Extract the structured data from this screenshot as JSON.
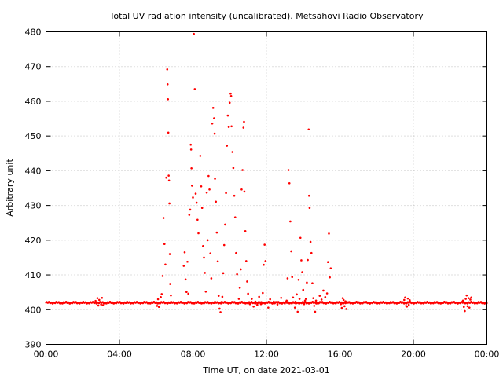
{
  "chart_data": {
    "type": "scatter",
    "title": "Total UV radiation intensity (uncalibrated). Metsähovi Radio Observatory",
    "xlabel": "Time UT, on date 2021-03-01",
    "ylabel": "Arbitrary unit",
    "x_unit": "hours UT",
    "xlim": [
      0,
      24
    ],
    "ylim": [
      390,
      480
    ],
    "x_ticks": [
      0,
      4,
      8,
      12,
      16,
      20,
      24
    ],
    "x_tick_labels": [
      "00:00",
      "04:00",
      "08:00",
      "12:00",
      "16:00",
      "20:00",
      "00:00"
    ],
    "y_ticks": [
      390,
      400,
      410,
      420,
      430,
      440,
      450,
      460,
      470,
      480
    ],
    "grid": true,
    "marker_color": "#ff0000",
    "series": [
      {
        "baseline": 402,
        "points": [
          [
            2.7,
            402.5
          ],
          [
            2.8,
            403.3
          ],
          [
            2.85,
            401.2
          ],
          [
            2.9,
            402.8
          ],
          [
            3.0,
            401.5
          ],
          [
            3.05,
            403.4
          ],
          [
            3.1,
            401.3
          ],
          [
            6.05,
            401.1
          ],
          [
            6.1,
            403.0
          ],
          [
            6.15,
            400.8
          ],
          [
            6.2,
            401.8
          ],
          [
            6.25,
            403.6
          ],
          [
            6.3,
            404.5
          ],
          [
            6.35,
            409.7
          ],
          [
            6.4,
            426.4
          ],
          [
            6.45,
            418.9
          ],
          [
            6.5,
            413.0
          ],
          [
            6.55,
            438.0
          ],
          [
            6.6,
            469.2
          ],
          [
            6.62,
            464.9
          ],
          [
            6.64,
            460.6
          ],
          [
            6.66,
            451.0
          ],
          [
            6.68,
            438.6
          ],
          [
            6.7,
            437.2
          ],
          [
            6.72,
            430.6
          ],
          [
            6.74,
            416.0
          ],
          [
            6.76,
            407.4
          ],
          [
            6.8,
            404.1
          ],
          [
            7.5,
            412.6
          ],
          [
            7.55,
            416.5
          ],
          [
            7.6,
            408.7
          ],
          [
            7.65,
            405.1
          ],
          [
            7.7,
            413.8
          ],
          [
            7.75,
            404.6
          ],
          [
            7.8,
            427.3
          ],
          [
            7.85,
            428.8
          ],
          [
            7.88,
            447.5
          ],
          [
            7.9,
            446.1
          ],
          [
            7.92,
            440.7
          ],
          [
            7.95,
            435.7
          ],
          [
            8.0,
            432.3
          ],
          [
            8.05,
            479.4
          ],
          [
            8.1,
            463.5
          ],
          [
            8.15,
            433.4
          ],
          [
            8.2,
            430.8
          ],
          [
            8.25,
            425.9
          ],
          [
            8.3,
            422.0
          ],
          [
            8.4,
            444.3
          ],
          [
            8.45,
            435.5
          ],
          [
            8.5,
            429.3
          ],
          [
            8.55,
            418.3
          ],
          [
            8.6,
            415.0
          ],
          [
            8.65,
            410.6
          ],
          [
            8.7,
            405.2
          ],
          [
            8.75,
            433.7
          ],
          [
            8.8,
            420.0
          ],
          [
            8.85,
            438.5
          ],
          [
            8.9,
            434.6
          ],
          [
            8.95,
            416.2
          ],
          [
            9.0,
            409.0
          ],
          [
            9.05,
            453.6
          ],
          [
            9.1,
            458.1
          ],
          [
            9.15,
            455.1
          ],
          [
            9.18,
            450.7
          ],
          [
            9.2,
            437.7
          ],
          [
            9.25,
            431.1
          ],
          [
            9.3,
            422.2
          ],
          [
            9.35,
            413.9
          ],
          [
            9.4,
            404.0
          ],
          [
            9.45,
            400.3
          ],
          [
            9.5,
            399.3
          ],
          [
            9.55,
            402.2
          ],
          [
            9.6,
            403.7
          ],
          [
            9.65,
            410.5
          ],
          [
            9.7,
            418.6
          ],
          [
            9.75,
            424.5
          ],
          [
            9.8,
            433.6
          ],
          [
            9.85,
            447.2
          ],
          [
            9.9,
            455.9
          ],
          [
            9.95,
            452.6
          ],
          [
            10.0,
            459.6
          ],
          [
            10.05,
            462.2
          ],
          [
            10.08,
            461.5
          ],
          [
            10.1,
            452.8
          ],
          [
            10.15,
            445.4
          ],
          [
            10.2,
            440.8
          ],
          [
            10.25,
            432.8
          ],
          [
            10.3,
            426.6
          ],
          [
            10.35,
            416.3
          ],
          [
            10.4,
            410.2
          ],
          [
            10.45,
            401.9
          ],
          [
            10.5,
            403.1
          ],
          [
            10.55,
            406.3
          ],
          [
            10.6,
            411.6
          ],
          [
            10.65,
            434.6
          ],
          [
            10.7,
            440.2
          ],
          [
            10.75,
            452.4
          ],
          [
            10.78,
            454.1
          ],
          [
            10.8,
            434.0
          ],
          [
            10.85,
            422.6
          ],
          [
            10.9,
            414.0
          ],
          [
            10.95,
            408.1
          ],
          [
            11.0,
            404.6
          ],
          [
            11.05,
            402.0
          ],
          [
            11.1,
            401.6
          ],
          [
            11.2,
            403.1
          ],
          [
            11.3,
            400.9
          ],
          [
            11.4,
            402.3
          ],
          [
            11.5,
            401.4
          ],
          [
            11.6,
            403.7
          ],
          [
            11.7,
            401.6
          ],
          [
            11.8,
            404.8
          ],
          [
            11.85,
            412.9
          ],
          [
            11.9,
            418.7
          ],
          [
            11.95,
            414.0
          ],
          [
            12.0,
            402.1
          ],
          [
            12.1,
            400.6
          ],
          [
            12.2,
            403.0
          ],
          [
            12.4,
            402.3
          ],
          [
            12.6,
            401.5
          ],
          [
            12.8,
            403.4
          ],
          [
            13.0,
            401.8
          ],
          [
            13.1,
            402.6
          ],
          [
            13.15,
            409.0
          ],
          [
            13.2,
            440.2
          ],
          [
            13.25,
            436.4
          ],
          [
            13.3,
            425.4
          ],
          [
            13.35,
            416.8
          ],
          [
            13.4,
            409.4
          ],
          [
            13.45,
            403.5
          ],
          [
            13.5,
            402.0
          ],
          [
            13.55,
            400.6
          ],
          [
            13.6,
            401.8
          ],
          [
            13.65,
            404.4
          ],
          [
            13.7,
            399.4
          ],
          [
            13.75,
            408.6
          ],
          [
            13.8,
            403.1
          ],
          [
            13.85,
            420.7
          ],
          [
            13.9,
            414.2
          ],
          [
            13.95,
            410.8
          ],
          [
            14.0,
            405.7
          ],
          [
            14.05,
            401.6
          ],
          [
            14.1,
            402.6
          ],
          [
            14.15,
            403.1
          ],
          [
            14.2,
            407.8
          ],
          [
            14.25,
            414.3
          ],
          [
            14.3,
            451.9
          ],
          [
            14.32,
            432.8
          ],
          [
            14.35,
            429.3
          ],
          [
            14.4,
            419.5
          ],
          [
            14.45,
            416.3
          ],
          [
            14.5,
            407.6
          ],
          [
            14.55,
            403.3
          ],
          [
            14.6,
            401.1
          ],
          [
            14.65,
            399.4
          ],
          [
            14.7,
            402.6
          ],
          [
            14.8,
            401.8
          ],
          [
            14.9,
            404.0
          ],
          [
            15.0,
            402.9
          ],
          [
            15.1,
            405.5
          ],
          [
            15.2,
            403.6
          ],
          [
            15.3,
            404.7
          ],
          [
            15.35,
            413.7
          ],
          [
            15.4,
            421.9
          ],
          [
            15.45,
            409.3
          ],
          [
            15.5,
            411.9
          ],
          [
            16.05,
            401.6
          ],
          [
            16.1,
            400.5
          ],
          [
            16.15,
            403.3
          ],
          [
            16.2,
            402.8
          ],
          [
            16.25,
            401.0
          ],
          [
            16.3,
            402.4
          ],
          [
            16.35,
            400.2
          ],
          [
            19.5,
            402.8
          ],
          [
            19.55,
            403.5
          ],
          [
            19.6,
            401.1
          ],
          [
            19.65,
            400.9
          ],
          [
            19.7,
            403.2
          ],
          [
            19.75,
            401.4
          ],
          [
            19.8,
            402.7
          ],
          [
            22.7,
            402.6
          ],
          [
            22.75,
            400.8
          ],
          [
            22.8,
            399.6
          ],
          [
            22.85,
            403.1
          ],
          [
            22.9,
            404.1
          ],
          [
            22.95,
            401.0
          ],
          [
            23.0,
            403.3
          ],
          [
            23.05,
            400.6
          ],
          [
            23.1,
            402.9
          ],
          [
            23.15,
            403.5
          ]
        ]
      }
    ]
  }
}
